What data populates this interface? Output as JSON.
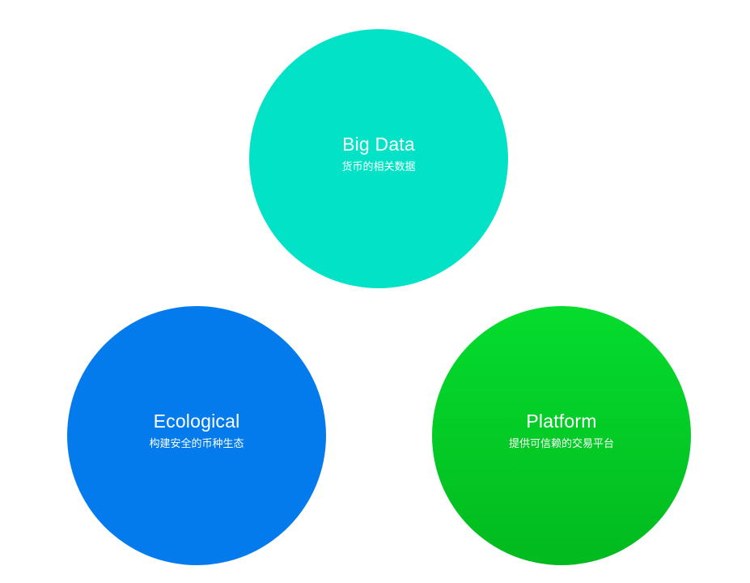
{
  "nodes": [
    {
      "title": "Big Data",
      "subtitle": "货币的相关数据",
      "color": "#02E2C6"
    },
    {
      "title": "Ecological",
      "subtitle": "构建安全的币种生态",
      "color": "#047BEC"
    },
    {
      "title": "Platform",
      "subtitle": "提供可信赖的交易平台",
      "color_top": "#05DC2E",
      "color_bottom": "#02BA1E"
    }
  ]
}
